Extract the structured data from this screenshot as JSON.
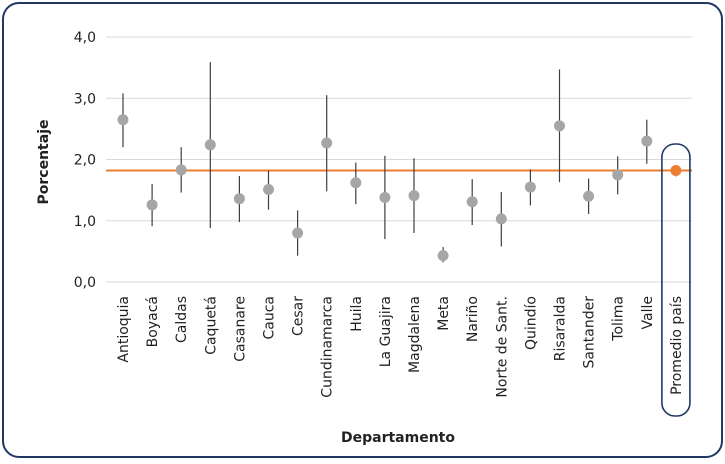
{
  "chart_data": {
    "type": "scatter",
    "title": "",
    "xlabel": "Departamento",
    "ylabel": "Porcentaje",
    "ylim": [
      0,
      4
    ],
    "yticks": [
      "0,0",
      "1,0",
      "2,0",
      "3,0",
      "4,0"
    ],
    "grid": true,
    "categories": [
      "Antioquia",
      "Boyacá",
      "Caldas",
      "Caquetá",
      "Casanare",
      "Cauca",
      "Cesar",
      "Cundinamarca",
      "Huila",
      "La Guajira",
      "Magdalena",
      "Meta",
      "Nariño",
      "Norte de Sant.",
      "Quindío",
      "Risaralda",
      "Santander",
      "Tolima",
      "Valle",
      "Promedio país"
    ],
    "values": [
      2.65,
      1.26,
      1.83,
      2.24,
      1.36,
      1.51,
      0.8,
      2.27,
      1.62,
      1.38,
      1.41,
      0.43,
      1.31,
      1.03,
      1.55,
      2.55,
      1.4,
      1.75,
      2.3,
      1.82
    ],
    "lower": [
      2.2,
      0.91,
      1.46,
      0.88,
      0.98,
      1.18,
      0.43,
      1.48,
      1.27,
      0.7,
      0.8,
      0.32,
      0.93,
      0.58,
      1.25,
      1.63,
      1.11,
      1.43,
      1.93,
      1.72
    ],
    "upper": [
      3.08,
      1.6,
      2.2,
      3.59,
      1.73,
      1.82,
      1.17,
      3.05,
      1.95,
      2.06,
      2.02,
      0.57,
      1.68,
      1.47,
      1.84,
      3.47,
      1.69,
      2.05,
      2.65,
      1.9
    ],
    "reference_line": 1.82,
    "colors": {
      "point": "#a6a6a6",
      "error_bar": "#3f3f3f",
      "reference": "#ed7d31",
      "highlight_point": "#ed7d31",
      "frame": "#1f3864",
      "grid": "#d9d9d9"
    }
  }
}
